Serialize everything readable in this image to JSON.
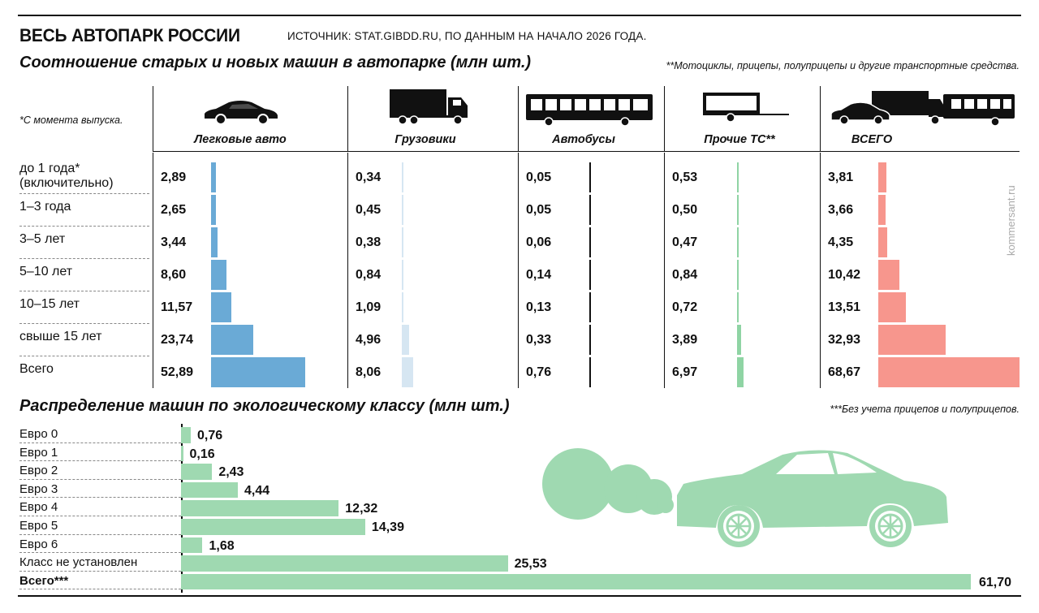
{
  "header": {
    "title": "ВЕСЬ АВТОПАРК РОССИИ",
    "source": "ИСТОЧНИК: STAT.GIBDD.RU, ПО ДАННЫМ НА НАЧАЛО 2026 ГОДА."
  },
  "section1": {
    "title": "Соотношение старых и новых машин в автопарке (млн шт.)",
    "note_right": "**Мотоциклы, прицепы, полуприцепы и другие транспортные средства.",
    "note_left": "*С момента выпуска."
  },
  "section2": {
    "title": "Распределение машин по экологическому классу (млн шт.)",
    "note_right": "***Без учета прицепов и полуприцепов."
  },
  "watermark": "kommersant.ru",
  "colors": {
    "cars": "#6aaad6",
    "trucks": "#d6e6f2",
    "buses": "#111111",
    "other": "#8fd4a4",
    "total": "#f7968d",
    "eco": "#9fd9b1",
    "illustration": "#9fd9b1"
  },
  "chart_data": [
    {
      "type": "bar",
      "orientation": "horizontal",
      "title": "Соотношение старых и новых машин в автопарке (млн шт.)",
      "categories": [
        "до 1 года*\n(включительно)",
        "1–3 года",
        "3–5 лет",
        "5–10 лет",
        "10–15 лет",
        "свыше 15 лет",
        "Всего"
      ],
      "series": [
        {
          "name": "Легковые авто",
          "icon": "car-icon",
          "values": [
            "2,89",
            "2,65",
            "3,44",
            "8,60",
            "11,57",
            "23,74",
            "52,89"
          ]
        },
        {
          "name": "Грузовики",
          "icon": "truck-icon",
          "values": [
            "0,34",
            "0,45",
            "0,38",
            "0,84",
            "1,09",
            "4,96",
            "8,06"
          ]
        },
        {
          "name": "Автобусы",
          "icon": "bus-icon",
          "values": [
            "0,05",
            "0,05",
            "0,06",
            "0,14",
            "0,13",
            "0,33",
            "0,76"
          ]
        },
        {
          "name": "Прочие ТС**",
          "icon": "trailer-icon",
          "values": [
            "0,53",
            "0,50",
            "0,47",
            "0,84",
            "0,72",
            "3,89",
            "6,97"
          ]
        },
        {
          "name": "ВСЕГО",
          "icon": "fleet-icon",
          "values": [
            "3,81",
            "3,66",
            "4,35",
            "10,42",
            "13,51",
            "32,93",
            "68,67"
          ]
        }
      ]
    },
    {
      "type": "bar",
      "orientation": "horizontal",
      "title": "Распределение машин по экологическому классу (млн шт.)",
      "categories": [
        "Евро 0",
        "Евро 1",
        "Евро 2",
        "Евро 3",
        "Евро 4",
        "Евро 5",
        "Евро 6",
        "Класс не установлен",
        "Всего***"
      ],
      "values": [
        "0,76",
        "0,16",
        "2,43",
        "4,44",
        "12,32",
        "14,39",
        "1,68",
        "25,53",
        "61,70"
      ]
    }
  ]
}
